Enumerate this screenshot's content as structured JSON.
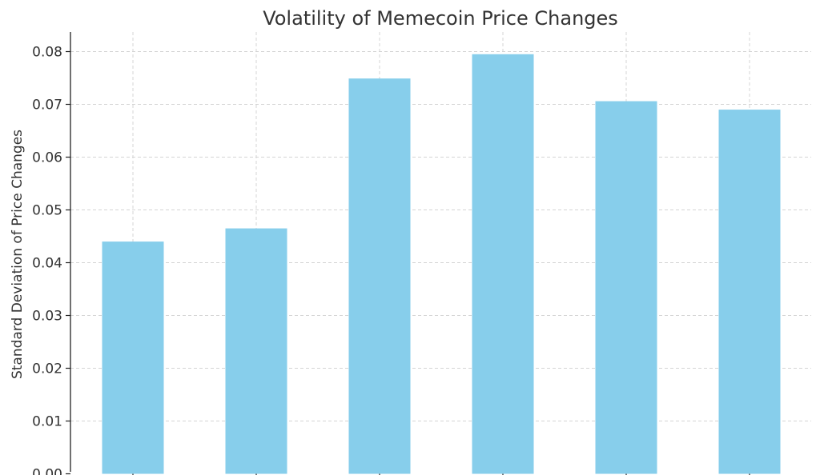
{
  "chart_data": {
    "type": "bar",
    "title": "Volatility of Memecoin Price Changes",
    "xlabel": "",
    "ylabel": "Standard Deviation of Price Changes",
    "categories": [
      "",
      "",
      "",
      "",
      "",
      ""
    ],
    "values": [
      0.044,
      0.0465,
      0.0749,
      0.0795,
      0.0706,
      0.069
    ],
    "ylim": [
      0,
      0.085
    ],
    "yticks": [
      {
        "value": 0.0,
        "label": "0.00"
      },
      {
        "value": 0.01,
        "label": "0.01"
      },
      {
        "value": 0.02,
        "label": "0.02"
      },
      {
        "value": 0.03,
        "label": "0.03"
      },
      {
        "value": 0.04,
        "label": "0.04"
      },
      {
        "value": 0.05,
        "label": "0.05"
      },
      {
        "value": 0.06,
        "label": "0.06"
      },
      {
        "value": 0.07,
        "label": "0.07"
      },
      {
        "value": 0.08,
        "label": "0.08"
      }
    ],
    "grid": true,
    "legend": "none",
    "colors": {
      "bar": "#87ceeb",
      "grid": "#d4d4d4",
      "axis": "#222222",
      "text": "#333333"
    }
  }
}
